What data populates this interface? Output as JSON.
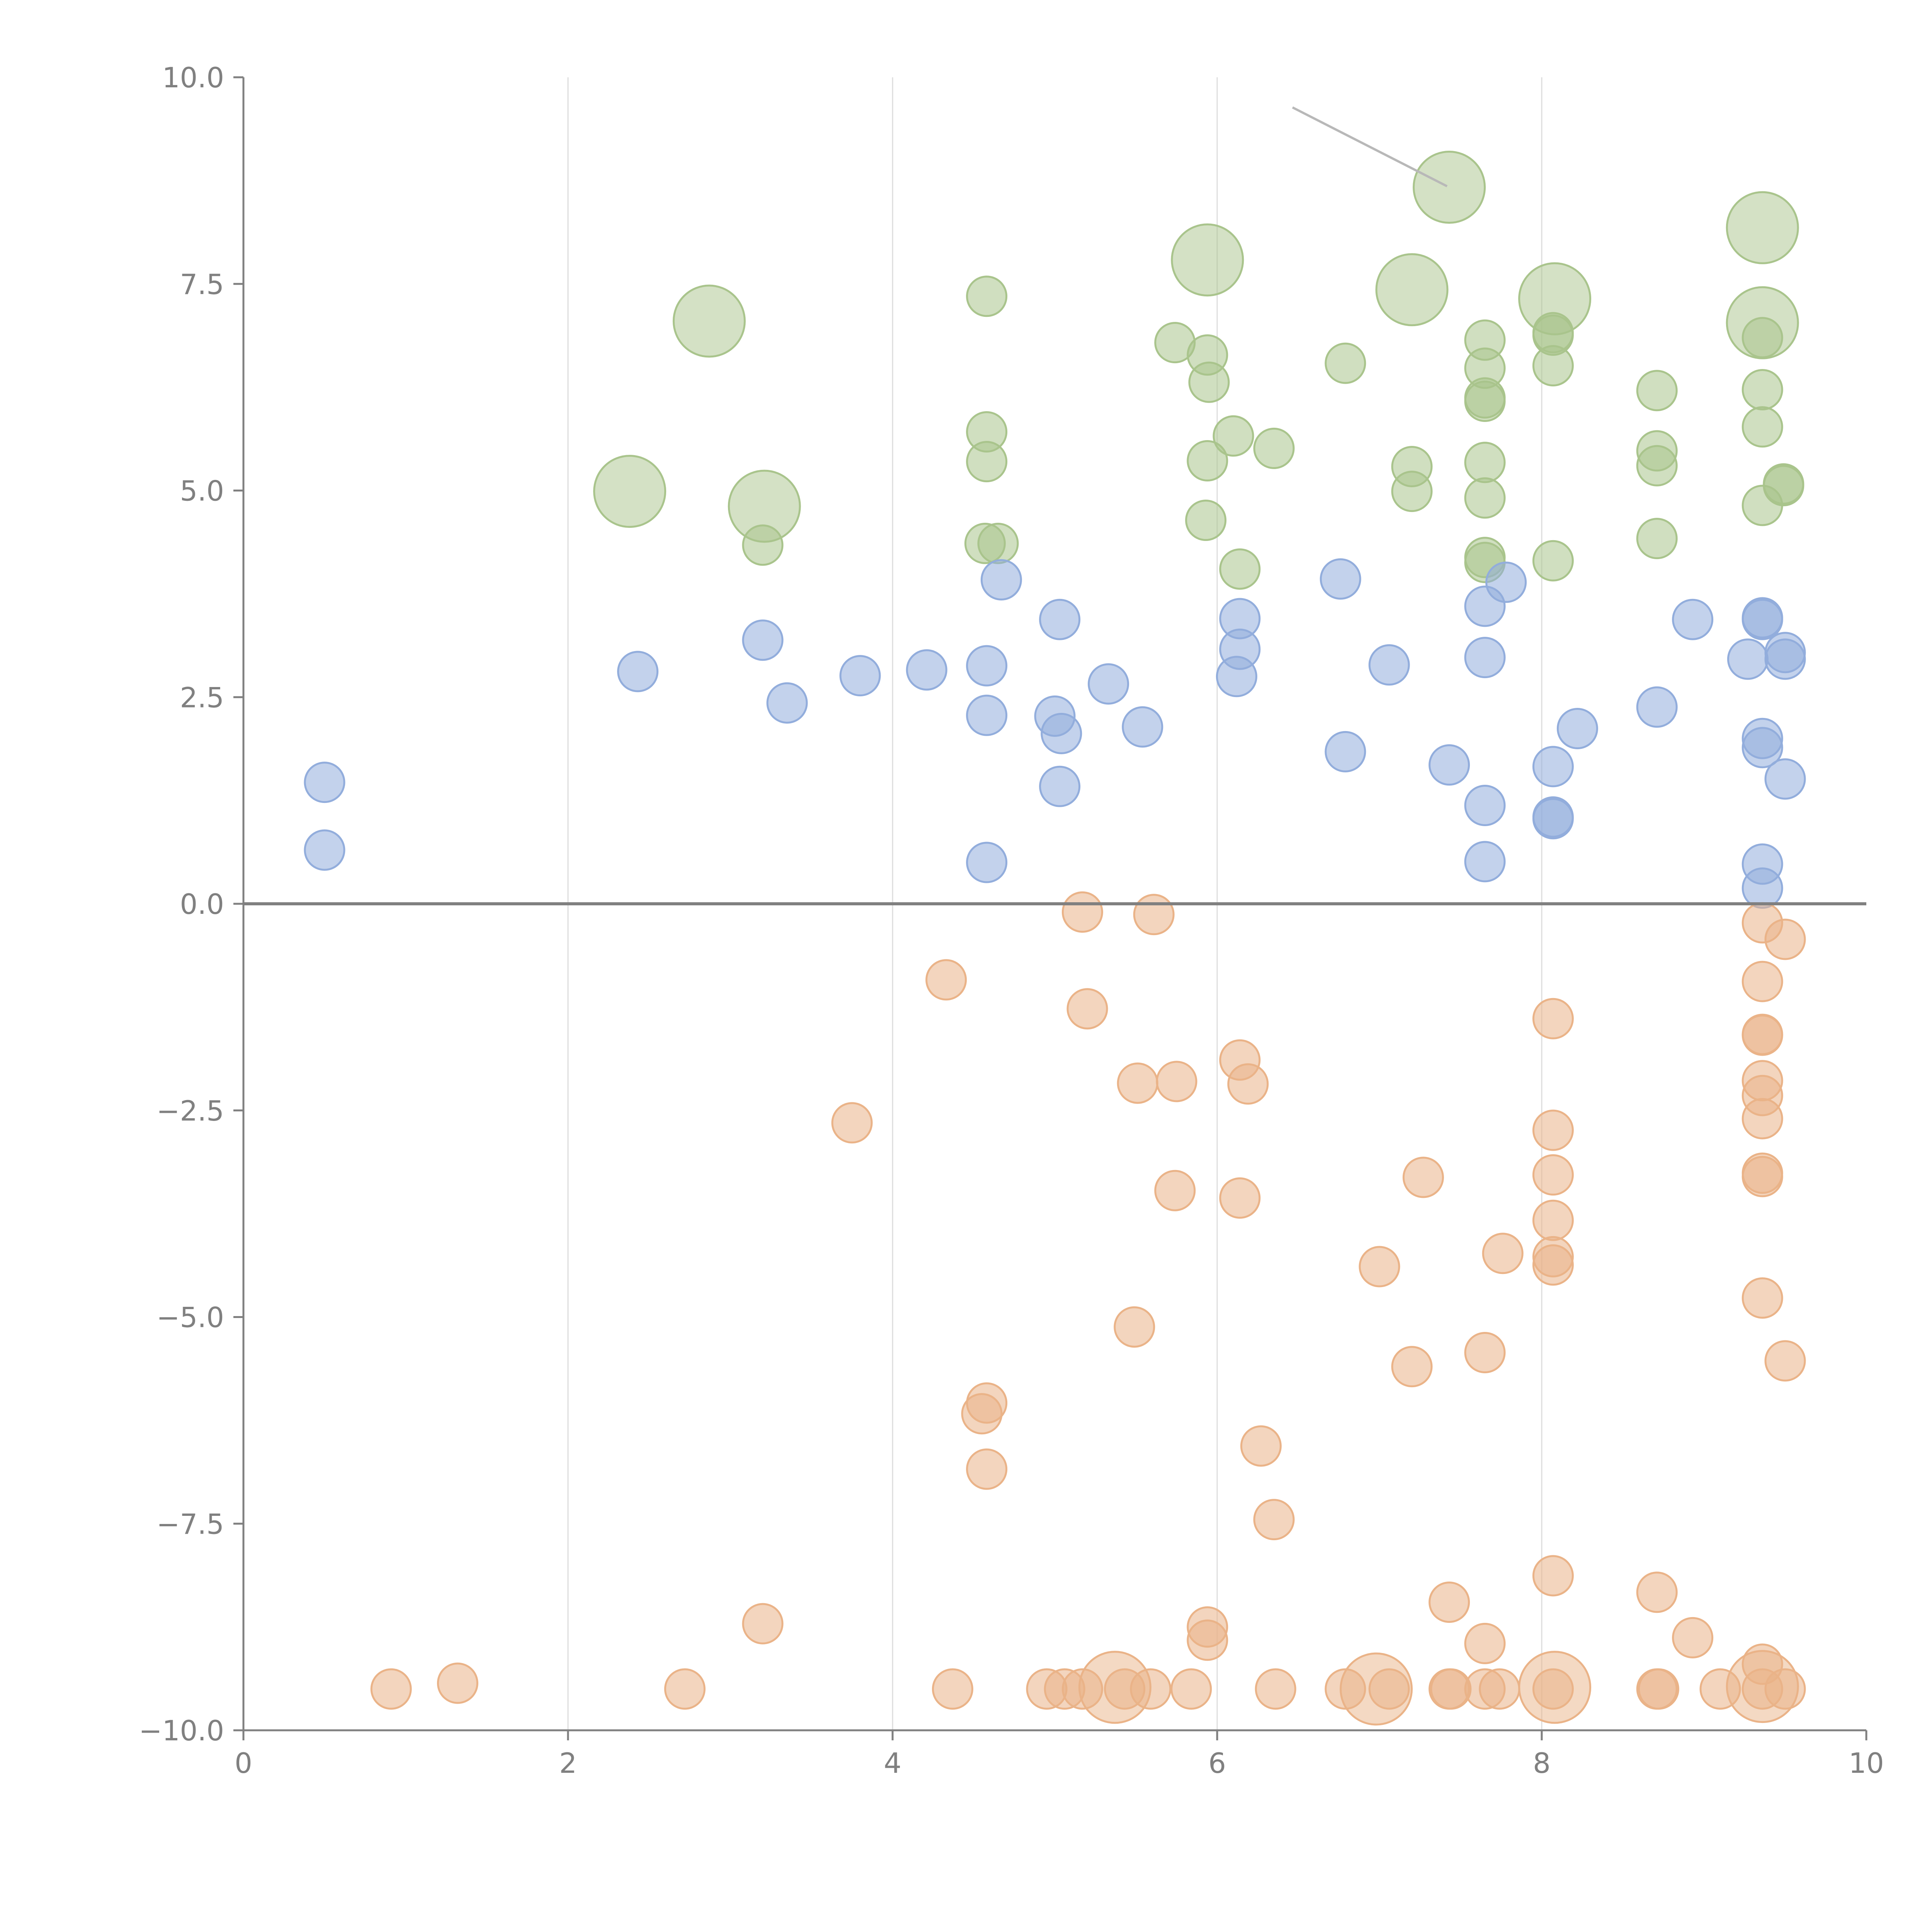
{
  "chart_data": {
    "type": "scatter",
    "title": "",
    "xlabel": "",
    "ylabel": "",
    "xlim": [
      0,
      10
    ],
    "ylim": [
      -10,
      10
    ],
    "x_ticks": [
      "0",
      "2",
      "4",
      "6",
      "8",
      "10"
    ],
    "y_ticks": [
      "−10.0",
      "−7.5",
      "−5.0",
      "−2.5",
      "0.0",
      "2.5",
      "5.0",
      "7.5",
      "10.0"
    ],
    "grid": "vertical",
    "zero_line": true,
    "series": [
      {
        "color": "#a9c48c",
        "points": [
          [
            4.58,
            7.35
          ],
          [
            5.94,
            6.64
          ],
          [
            5.95,
            6.31
          ],
          [
            4.58,
            5.71
          ],
          [
            4.58,
            5.35
          ],
          [
            5.94,
            5.36
          ],
          [
            3.2,
            4.34
          ],
          [
            4.57,
            4.36
          ],
          [
            4.65,
            4.36
          ],
          [
            5.93,
            4.64
          ],
          [
            5.74,
            6.79
          ],
          [
            6.1,
            5.66
          ],
          [
            6.35,
            5.51
          ],
          [
            6.14,
            4.05
          ],
          [
            6.79,
            6.54
          ],
          [
            7.2,
            5.29
          ],
          [
            7.2,
            4.99
          ],
          [
            7.65,
            6.82
          ],
          [
            7.65,
            6.48
          ],
          [
            7.65,
            6.12
          ],
          [
            7.65,
            6.08
          ],
          [
            7.65,
            5.34
          ],
          [
            7.65,
            4.91
          ],
          [
            7.65,
            4.19
          ],
          [
            7.65,
            4.13
          ],
          [
            8.07,
            6.91
          ],
          [
            8.07,
            6.88
          ],
          [
            8.07,
            6.51
          ],
          [
            8.07,
            4.15
          ],
          [
            8.71,
            6.21
          ],
          [
            8.71,
            5.48
          ],
          [
            8.71,
            5.3
          ],
          [
            8.71,
            4.42
          ],
          [
            9.36,
            6.85
          ],
          [
            9.36,
            6.22
          ],
          [
            9.36,
            5.77
          ],
          [
            9.36,
            4.82
          ],
          [
            9.49,
            5.08
          ],
          [
            9.49,
            5.06
          ]
        ],
        "large_points": [
          [
            2.87,
            7.05
          ],
          [
            2.38,
            4.99
          ],
          [
            3.21,
            4.81
          ],
          [
            5.94,
            7.79
          ],
          [
            7.43,
            8.67
          ],
          [
            7.2,
            7.43
          ],
          [
            8.08,
            7.32
          ],
          [
            9.36,
            8.18
          ],
          [
            9.36,
            7.03
          ]
        ]
      },
      {
        "color": "#92addc",
        "points": [
          [
            0.5,
            1.47
          ],
          [
            0.5,
            0.65
          ],
          [
            2.43,
            2.81
          ],
          [
            3.2,
            3.19
          ],
          [
            3.35,
            2.43
          ],
          [
            3.8,
            2.76
          ],
          [
            4.21,
            2.83
          ],
          [
            4.58,
            2.88
          ],
          [
            4.58,
            2.28
          ],
          [
            4.58,
            0.5
          ],
          [
            4.67,
            3.92
          ],
          [
            5.03,
            3.44
          ],
          [
            5.0,
            2.27
          ],
          [
            5.04,
            2.06
          ],
          [
            5.03,
            1.42
          ],
          [
            5.33,
            2.66
          ],
          [
            5.54,
            2.14
          ],
          [
            6.14,
            3.45
          ],
          [
            6.14,
            3.08
          ],
          [
            6.12,
            2.75
          ],
          [
            6.76,
            3.93
          ],
          [
            6.79,
            1.84
          ],
          [
            7.06,
            2.89
          ],
          [
            7.43,
            1.68
          ],
          [
            7.65,
            3.6
          ],
          [
            7.65,
            2.98
          ],
          [
            7.65,
            1.19
          ],
          [
            7.65,
            0.51
          ],
          [
            7.78,
            3.89
          ],
          [
            8.07,
            1.66
          ],
          [
            8.07,
            1.05
          ],
          [
            8.07,
            1.03
          ],
          [
            8.22,
            2.12
          ],
          [
            8.71,
            2.38
          ],
          [
            8.93,
            3.44
          ],
          [
            9.27,
            2.96
          ],
          [
            9.36,
            3.46
          ],
          [
            9.36,
            3.44
          ],
          [
            9.36,
            2.0
          ],
          [
            9.36,
            1.89
          ],
          [
            9.36,
            0.48
          ],
          [
            9.36,
            0.19
          ],
          [
            9.5,
            3.04
          ],
          [
            9.5,
            2.96
          ],
          [
            9.5,
            1.51
          ]
        ]
      },
      {
        "color": "#eab388",
        "points": [
          [
            5.17,
            -0.1
          ],
          [
            5.61,
            -0.13
          ],
          [
            4.33,
            -0.92
          ],
          [
            5.2,
            -1.27
          ],
          [
            3.75,
            -2.65
          ],
          [
            5.51,
            -2.17
          ],
          [
            5.75,
            -2.15
          ],
          [
            6.14,
            -1.89
          ],
          [
            6.19,
            -2.18
          ],
          [
            5.74,
            -3.47
          ],
          [
            6.14,
            -3.56
          ],
          [
            5.49,
            -5.12
          ],
          [
            4.58,
            -6.04
          ],
          [
            4.55,
            -6.17
          ],
          [
            4.58,
            -6.84
          ],
          [
            6.27,
            -6.56
          ],
          [
            6.35,
            -7.45
          ],
          [
            3.2,
            -8.71
          ],
          [
            5.94,
            -8.75
          ],
          [
            5.94,
            -8.91
          ],
          [
            0.91,
            -9.5
          ],
          [
            1.32,
            -9.43
          ],
          [
            2.72,
            -9.5
          ],
          [
            4.37,
            -9.5
          ],
          [
            4.95,
            -9.5
          ],
          [
            5.06,
            -9.5
          ],
          [
            5.17,
            -9.5
          ],
          [
            5.43,
            -9.5
          ],
          [
            5.59,
            -9.5
          ],
          [
            5.84,
            -9.5
          ],
          [
            6.36,
            -9.5
          ],
          [
            6.79,
            -9.5
          ],
          [
            7.06,
            -9.5
          ],
          [
            7.43,
            -9.5
          ],
          [
            7.44,
            -9.5
          ],
          [
            7.65,
            -9.5
          ],
          [
            7.74,
            -9.5
          ],
          [
            8.07,
            -9.5
          ],
          [
            8.71,
            -9.5
          ],
          [
            8.72,
            -9.5
          ],
          [
            9.1,
            -9.5
          ],
          [
            9.36,
            -9.5
          ],
          [
            9.5,
            -9.5
          ],
          [
            7.0,
            -4.39
          ],
          [
            7.2,
            -5.6
          ],
          [
            7.27,
            -3.31
          ],
          [
            7.43,
            -8.45
          ],
          [
            7.65,
            -5.43
          ],
          [
            7.65,
            -8.95
          ],
          [
            7.76,
            -4.23
          ],
          [
            8.07,
            -1.39
          ],
          [
            8.07,
            -2.74
          ],
          [
            8.07,
            -3.28
          ],
          [
            8.07,
            -3.83
          ],
          [
            8.07,
            -4.27
          ],
          [
            8.07,
            -4.37
          ],
          [
            8.07,
            -8.13
          ],
          [
            8.71,
            -8.33
          ],
          [
            8.93,
            -8.88
          ],
          [
            9.36,
            -0.23
          ],
          [
            9.36,
            -0.94
          ],
          [
            9.36,
            -1.58
          ],
          [
            9.36,
            -1.59
          ],
          [
            9.36,
            -2.14
          ],
          [
            9.36,
            -2.32
          ],
          [
            9.36,
            -2.6
          ],
          [
            9.36,
            -3.26
          ],
          [
            9.36,
            -3.3
          ],
          [
            9.36,
            -4.77
          ],
          [
            9.36,
            -9.2
          ],
          [
            9.5,
            -0.43
          ],
          [
            9.5,
            -5.53
          ]
        ],
        "large_points": [
          [
            5.37,
            -9.48
          ],
          [
            6.98,
            -9.5
          ],
          [
            8.08,
            -9.48
          ],
          [
            9.36,
            -9.47
          ]
        ]
      }
    ]
  }
}
